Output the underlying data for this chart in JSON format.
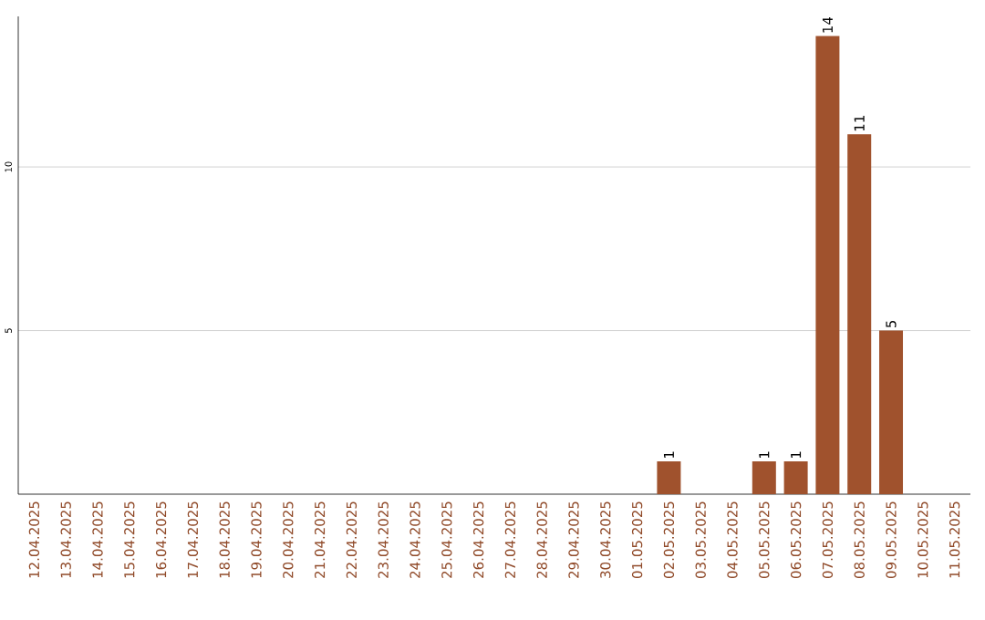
{
  "chart_data": {
    "type": "bar",
    "categories": [
      "12.04.2025",
      "13.04.2025",
      "14.04.2025",
      "15.04.2025",
      "16.04.2025",
      "17.04.2025",
      "18.04.2025",
      "19.04.2025",
      "20.04.2025",
      "21.04.2025",
      "22.04.2025",
      "23.04.2025",
      "24.04.2025",
      "25.04.2025",
      "26.04.2025",
      "27.04.2025",
      "28.04.2025",
      "29.04.2025",
      "30.04.2025",
      "01.05.2025",
      "02.05.2025",
      "03.05.2025",
      "04.05.2025",
      "05.05.2025",
      "06.05.2025",
      "07.05.2025",
      "08.05.2025",
      "09.05.2025",
      "10.05.2025",
      "11.05.2025"
    ],
    "values": [
      0,
      0,
      0,
      0,
      0,
      0,
      0,
      0,
      0,
      0,
      0,
      0,
      0,
      0,
      0,
      0,
      0,
      0,
      0,
      0,
      1,
      0,
      0,
      1,
      1,
      14,
      11,
      5,
      0,
      0
    ],
    "value_labels": [
      null,
      null,
      null,
      null,
      null,
      null,
      null,
      null,
      null,
      null,
      null,
      null,
      null,
      null,
      null,
      null,
      null,
      null,
      null,
      null,
      "1",
      null,
      null,
      "1",
      "1",
      "14",
      "11",
      "5",
      null,
      null
    ],
    "color": "#a0522d",
    "ylim": [
      0,
      14.6
    ],
    "yticks": [
      5,
      10
    ],
    "grid": "y"
  }
}
